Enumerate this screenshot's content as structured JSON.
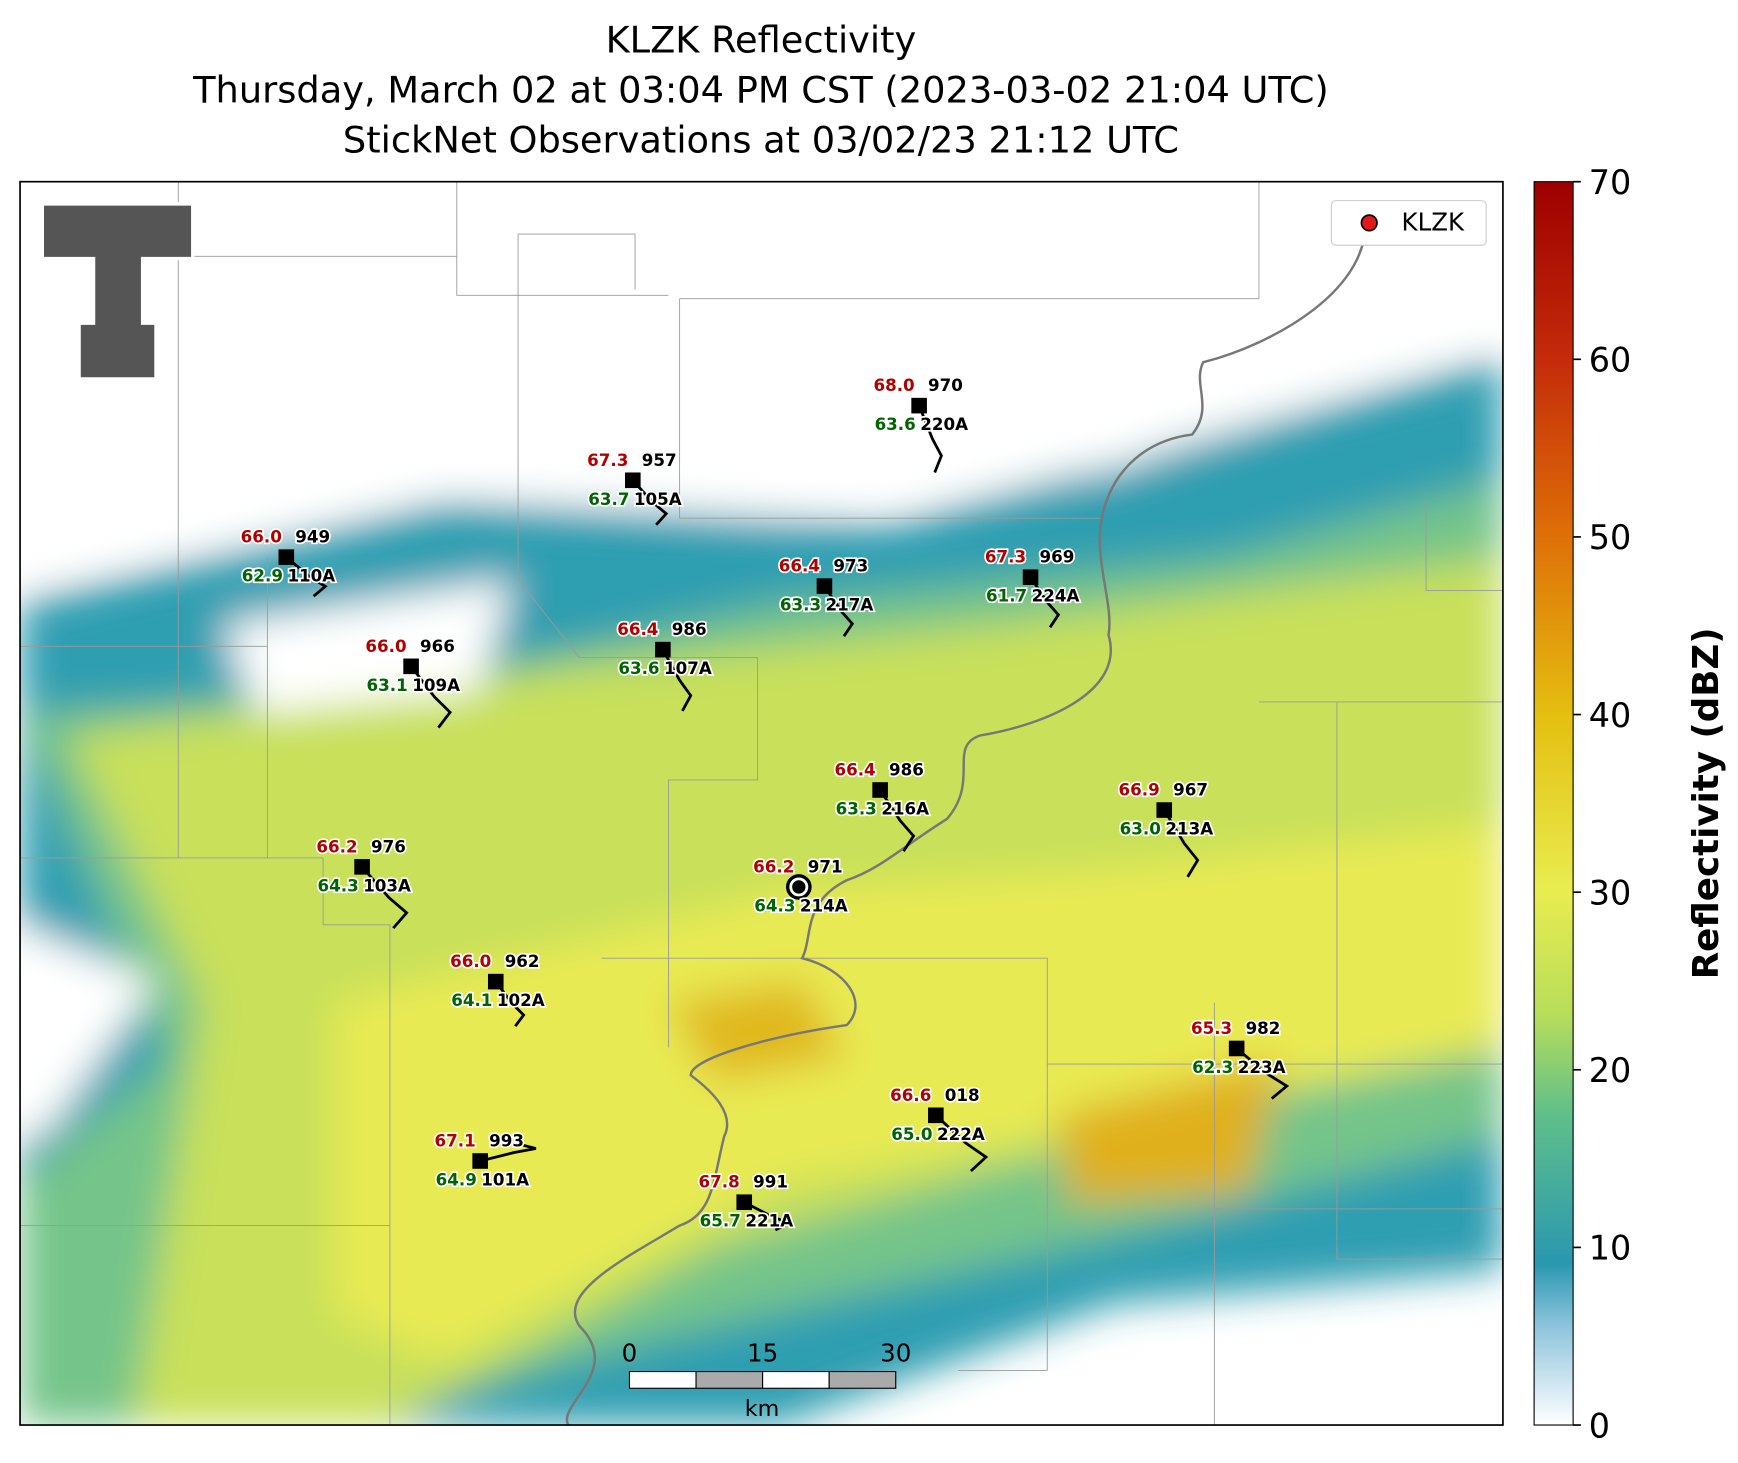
{
  "header": {
    "title": "KLZK Reflectivity",
    "subtitle": "Thursday, March 02 at 03:04 PM CST (2023-03-02 21:04 UTC)",
    "subtitle2": "StickNet Observations at 03/02/23 21:12 UTC"
  },
  "legend": {
    "label": "KLZK",
    "color": "#e31a1c"
  },
  "colorbar": {
    "label": "Reflectivity (dBZ)",
    "lim": [
      0,
      70
    ],
    "ticks": [
      0,
      10,
      20,
      30,
      40,
      50,
      60,
      70
    ]
  },
  "scale_bar": {
    "ticks": [
      0,
      15,
      30
    ],
    "unit": "km"
  },
  "stations": [
    {
      "id": "110A",
      "temp": "66.0",
      "dewpoint": "62.9",
      "pressure": "949"
    },
    {
      "id": "105A",
      "temp": "67.3",
      "dewpoint": "63.7",
      "pressure": "957"
    },
    {
      "id": "220A",
      "temp": "68.0",
      "dewpoint": "63.6",
      "pressure": "970"
    },
    {
      "id": "217A",
      "temp": "66.4",
      "dewpoint": "63.3",
      "pressure": "973"
    },
    {
      "id": "224A",
      "temp": "67.3",
      "dewpoint": "61.7",
      "pressure": "969"
    },
    {
      "id": "109A",
      "temp": "66.0",
      "dewpoint": "63.1",
      "pressure": "966"
    },
    {
      "id": "107A",
      "temp": "66.4",
      "dewpoint": "63.6",
      "pressure": "986"
    },
    {
      "id": "216A",
      "temp": "66.4",
      "dewpoint": "63.3",
      "pressure": "986"
    },
    {
      "id": "213A",
      "temp": "66.9",
      "dewpoint": "63.0",
      "pressure": "967"
    },
    {
      "id": "103A",
      "temp": "66.2",
      "dewpoint": "64.3",
      "pressure": "976"
    },
    {
      "id": "214A",
      "temp": "66.2",
      "dewpoint": "64.3",
      "pressure": "971"
    },
    {
      "id": "102A",
      "temp": "66.0",
      "dewpoint": "64.1",
      "pressure": "962"
    },
    {
      "id": "223A",
      "temp": "65.3",
      "dewpoint": "62.3",
      "pressure": "982"
    },
    {
      "id": "222A",
      "temp": "66.6",
      "dewpoint": "65.0",
      "pressure": "018"
    },
    {
      "id": "101A",
      "temp": "67.1",
      "dewpoint": "64.9",
      "pressure": "993"
    },
    {
      "id": "221A",
      "temp": "67.8",
      "dewpoint": "65.7",
      "pressure": "991"
    }
  ]
}
